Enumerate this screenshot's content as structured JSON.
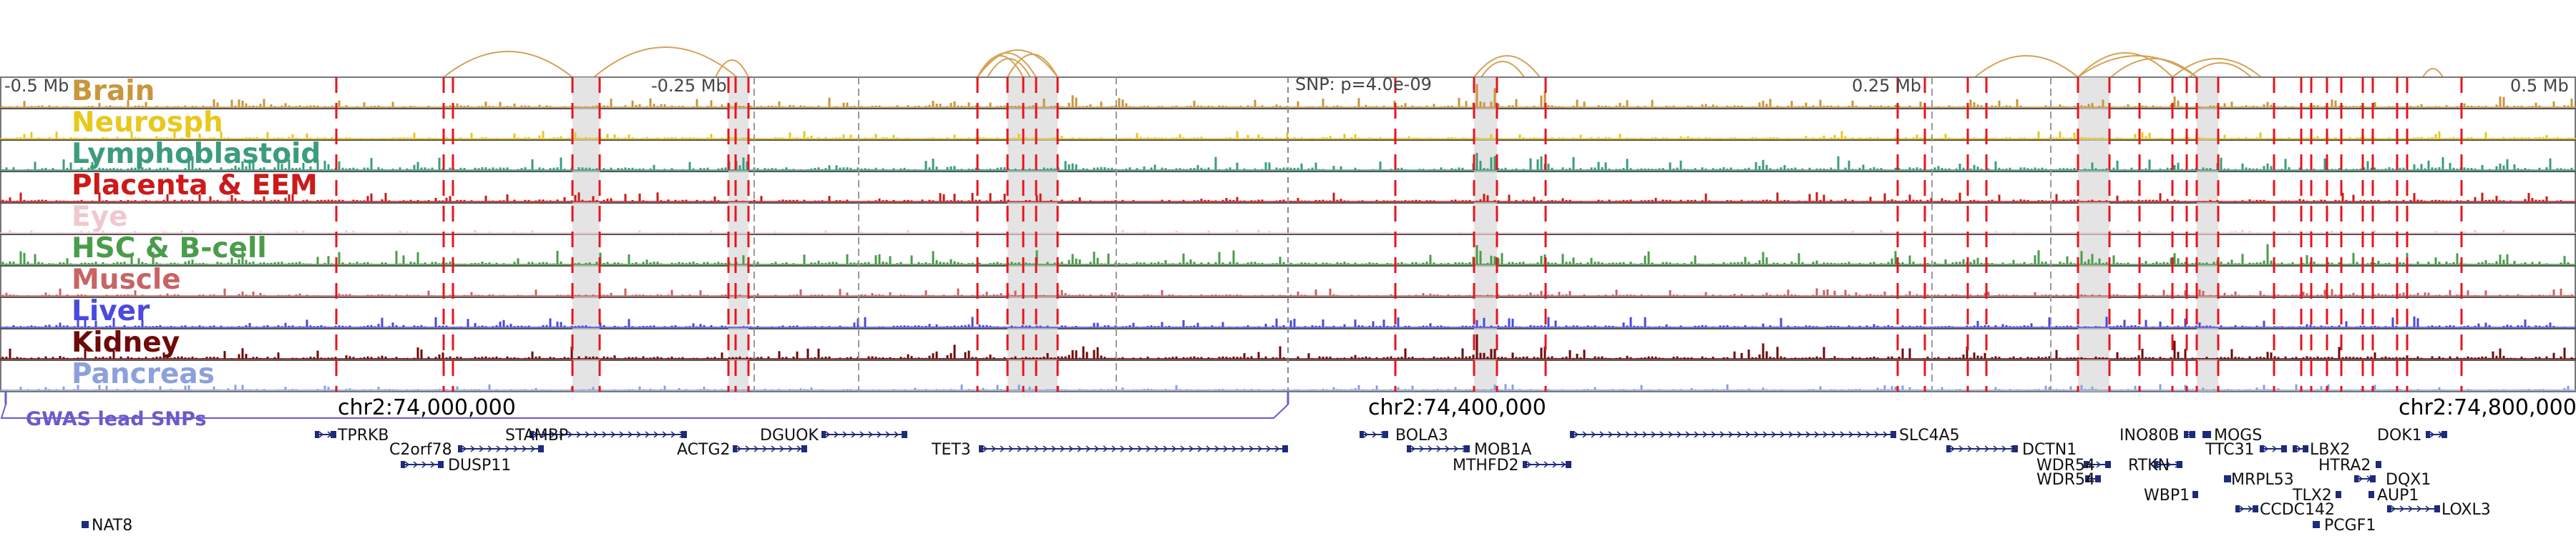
{
  "view": {
    "left_label": "-0.5 Mb",
    "mid_left_label": "-0.25 Mb",
    "snp_label": "SNP: p=4.0e-09",
    "mid_right_label": "0.25 Mb",
    "right_label": "0.5 Mb"
  },
  "coordinates": {
    "c1": "chr2:74,000,000",
    "c2": "chr2:74,400,000",
    "c3": "chr2:74,800,000"
  },
  "gwas": {
    "label": "GWAS lead SNPs",
    "color": "#6a5acd"
  },
  "colors": {
    "vline": "#e8141c",
    "arc": "#d4a255",
    "gene": "#1e2b7a",
    "shade": "#d8d8d8"
  },
  "tracks": [
    {
      "name": "Brain",
      "color": "#c8963c"
    },
    {
      "name": "Neurosph",
      "color": "#e8c81c"
    },
    {
      "name": "Lymphoblastoid",
      "color": "#3c9c7c"
    },
    {
      "name": "Placenta & EEM",
      "color": "#cc1a1a"
    },
    {
      "name": "Eye",
      "color": "#f0c8d0"
    },
    {
      "name": "HSC & B-cell",
      "color": "#4a9c4a"
    },
    {
      "name": "Muscle",
      "color": "#c86464"
    },
    {
      "name": "Liver",
      "color": "#4a4ae0"
    },
    {
      "name": "Kidney",
      "color": "#6e0a0a"
    },
    {
      "name": "Pancreas",
      "color": "#8ca0dc"
    }
  ],
  "genes": [
    {
      "name": "TPRKB"
    },
    {
      "name": "STAMBP"
    },
    {
      "name": "DGUOK"
    },
    {
      "name": "C2orf78"
    },
    {
      "name": "ACTG2"
    },
    {
      "name": "TET3"
    },
    {
      "name": "DUSP11"
    },
    {
      "name": "NAT8"
    },
    {
      "name": "BOLA3"
    },
    {
      "name": "MOB1A"
    },
    {
      "name": "MTHFD2"
    },
    {
      "name": "SLC4A5"
    },
    {
      "name": "DCTN1"
    },
    {
      "name": "WDR54"
    },
    {
      "name": "WDR54"
    },
    {
      "name": "INO80B"
    },
    {
      "name": "MOGS"
    },
    {
      "name": "RTKN"
    },
    {
      "name": "TTC31"
    },
    {
      "name": "LBX2"
    },
    {
      "name": "DOK1"
    },
    {
      "name": "MRPL53"
    },
    {
      "name": "HTRA2"
    },
    {
      "name": "DQX1"
    },
    {
      "name": "WBP1"
    },
    {
      "name": "TLX2"
    },
    {
      "name": "AUP1"
    },
    {
      "name": "CCDC142"
    },
    {
      "name": "LOXL3"
    },
    {
      "name": "PCGF1"
    }
  ]
}
